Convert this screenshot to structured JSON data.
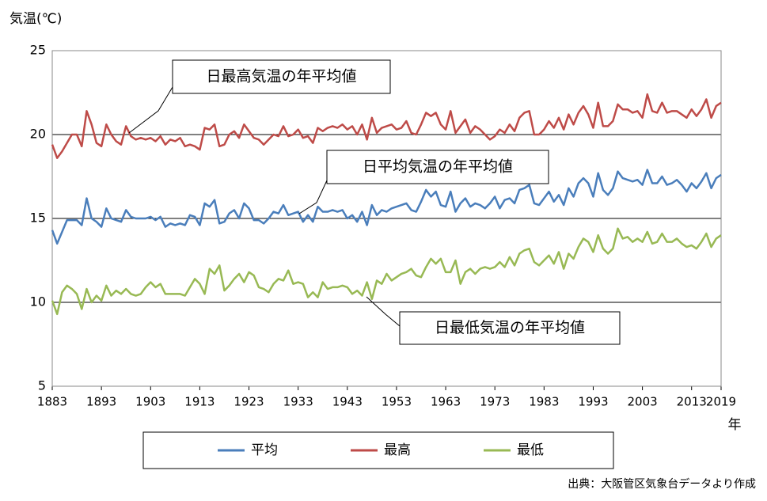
{
  "chart_data": {
    "type": "line",
    "y_label": "気温(℃)",
    "x_label": "年",
    "source": "出典：大阪管区気象台データより作成",
    "annotations": [
      "日最高気温の年平均値",
      "日平均気温の年平均値",
      "日最低気温の年平均値"
    ],
    "x": [
      1883,
      1884,
      1885,
      1886,
      1887,
      1888,
      1889,
      1890,
      1891,
      1892,
      1893,
      1894,
      1895,
      1896,
      1897,
      1898,
      1899,
      1900,
      1901,
      1902,
      1903,
      1904,
      1905,
      1906,
      1907,
      1908,
      1909,
      1910,
      1911,
      1912,
      1913,
      1914,
      1915,
      1916,
      1917,
      1918,
      1919,
      1920,
      1921,
      1922,
      1923,
      1924,
      1925,
      1926,
      1927,
      1928,
      1929,
      1930,
      1931,
      1932,
      1933,
      1934,
      1935,
      1936,
      1937,
      1938,
      1939,
      1940,
      1941,
      1942,
      1943,
      1944,
      1945,
      1946,
      1947,
      1948,
      1949,
      1950,
      1951,
      1952,
      1953,
      1954,
      1955,
      1956,
      1957,
      1958,
      1959,
      1960,
      1961,
      1962,
      1963,
      1964,
      1965,
      1966,
      1967,
      1968,
      1969,
      1970,
      1971,
      1972,
      1973,
      1974,
      1975,
      1976,
      1977,
      1978,
      1979,
      1980,
      1981,
      1982,
      1983,
      1984,
      1985,
      1986,
      1987,
      1988,
      1989,
      1990,
      1991,
      1992,
      1993,
      1994,
      1995,
      1996,
      1997,
      1998,
      1999,
      2000,
      2001,
      2002,
      2003,
      2004,
      2005,
      2006,
      2007,
      2008,
      2009,
      2010,
      2011,
      2012,
      2013,
      2014,
      2015,
      2016,
      2017,
      2018,
      2019
    ],
    "series": [
      {
        "name": "平均",
        "color": "#4a7ebb",
        "values": [
          14.3,
          13.5,
          14.2,
          14.9,
          14.9,
          14.9,
          14.6,
          16.2,
          15.0,
          14.8,
          14.5,
          15.6,
          15.0,
          14.9,
          14.8,
          15.5,
          15.1,
          15.0,
          15.0,
          15.0,
          15.1,
          14.9,
          15.1,
          14.5,
          14.7,
          14.6,
          14.7,
          14.6,
          15.2,
          15.1,
          14.6,
          15.9,
          15.7,
          16.1,
          14.7,
          14.8,
          15.3,
          15.5,
          15.0,
          15.9,
          15.6,
          14.9,
          14.9,
          14.7,
          15.0,
          15.4,
          15.3,
          15.8,
          15.2,
          15.3,
          15.4,
          14.8,
          15.2,
          14.8,
          15.7,
          15.4,
          15.4,
          15.5,
          15.4,
          15.5,
          15.0,
          15.2,
          14.8,
          15.4,
          14.6,
          15.8,
          15.2,
          15.5,
          15.4,
          15.6,
          15.7,
          15.8,
          15.9,
          15.5,
          15.4,
          16.0,
          16.7,
          16.3,
          16.6,
          15.8,
          15.7,
          16.6,
          15.4,
          15.9,
          16.2,
          15.7,
          15.9,
          15.8,
          15.6,
          15.9,
          16.3,
          15.6,
          16.1,
          16.2,
          15.9,
          16.7,
          16.8,
          17.0,
          15.9,
          15.8,
          16.2,
          16.6,
          16.0,
          16.4,
          15.8,
          16.8,
          16.3,
          17.1,
          17.4,
          17.1,
          16.3,
          17.7,
          16.7,
          16.4,
          16.8,
          17.8,
          17.4,
          17.3,
          17.2,
          17.3,
          17.0,
          17.9,
          17.1,
          17.1,
          17.5,
          17.0,
          17.1,
          17.3,
          17.0,
          16.6,
          17.1,
          16.8,
          17.2,
          17.7,
          16.8,
          17.4,
          17.6
        ]
      },
      {
        "name": "最高",
        "color": "#be4b48",
        "values": [
          19.4,
          18.6,
          19.0,
          19.5,
          20.0,
          20.0,
          19.3,
          21.4,
          20.6,
          19.5,
          19.3,
          20.6,
          20.0,
          19.6,
          19.4,
          20.5,
          19.9,
          19.7,
          19.8,
          19.7,
          19.8,
          19.6,
          19.9,
          19.4,
          19.7,
          19.6,
          19.8,
          19.3,
          19.4,
          19.3,
          19.1,
          20.4,
          20.3,
          20.6,
          19.3,
          19.4,
          20.0,
          20.2,
          19.8,
          20.6,
          20.2,
          19.8,
          19.7,
          19.4,
          19.7,
          20.0,
          19.9,
          20.5,
          19.9,
          20.0,
          20.3,
          19.8,
          19.9,
          19.5,
          20.4,
          20.2,
          20.4,
          20.5,
          20.4,
          20.6,
          20.3,
          20.5,
          20.0,
          20.6,
          19.7,
          21.0,
          20.1,
          20.4,
          20.5,
          20.6,
          20.3,
          20.4,
          20.8,
          20.1,
          20.0,
          20.6,
          21.3,
          21.1,
          21.3,
          20.6,
          20.3,
          21.4,
          20.1,
          20.5,
          20.9,
          20.1,
          20.5,
          20.3,
          20.0,
          19.7,
          19.9,
          20.3,
          20.1,
          20.6,
          20.2,
          21.0,
          21.3,
          21.4,
          20.0,
          20.0,
          20.3,
          20.8,
          20.4,
          21.0,
          20.3,
          21.2,
          20.6,
          21.3,
          21.7,
          21.2,
          20.4,
          21.9,
          20.5,
          20.5,
          20.8,
          21.8,
          21.5,
          21.5,
          21.3,
          21.4,
          21.0,
          22.4,
          21.4,
          21.3,
          21.9,
          21.3,
          21.4,
          21.4,
          21.2,
          21.0,
          21.5,
          21.1,
          21.5,
          22.1,
          21.0,
          21.7,
          21.9
        ]
      },
      {
        "name": "最低",
        "color": "#98b954",
        "values": [
          10.1,
          9.3,
          10.6,
          11.0,
          10.8,
          10.5,
          9.6,
          10.8,
          10.0,
          10.4,
          10.1,
          11.0,
          10.4,
          10.7,
          10.5,
          10.8,
          10.5,
          10.4,
          10.5,
          10.9,
          11.2,
          10.9,
          11.1,
          10.5,
          10.5,
          10.5,
          10.5,
          10.4,
          10.9,
          11.4,
          11.1,
          10.5,
          12.0,
          11.7,
          12.2,
          10.7,
          11.0,
          11.4,
          11.7,
          11.2,
          11.8,
          11.6,
          10.9,
          10.8,
          10.6,
          11.1,
          11.4,
          11.3,
          11.9,
          11.1,
          11.2,
          11.1,
          10.3,
          10.6,
          10.3,
          11.2,
          10.8,
          10.9,
          10.9,
          11.0,
          10.9,
          10.5,
          10.7,
          10.4,
          11.2,
          10.2,
          11.3,
          11.1,
          11.7,
          11.3,
          11.5,
          11.7,
          11.8,
          12.0,
          11.6,
          11.5,
          12.1,
          12.6,
          12.3,
          12.6,
          11.8,
          11.8,
          12.5,
          11.1,
          11.8,
          12.0,
          11.7,
          12.0,
          12.1,
          12.0,
          12.1,
          12.4,
          12.1,
          12.7,
          12.2,
          12.9,
          13.1,
          13.2,
          12.4,
          12.2,
          12.5,
          12.8,
          12.3,
          13.0,
          12.0,
          12.9,
          12.6,
          13.3,
          13.8,
          13.6,
          13.0,
          14.0,
          13.2,
          12.9,
          13.2,
          14.4,
          13.8,
          13.9,
          13.6,
          13.8,
          13.6,
          14.2,
          13.5,
          13.6,
          14.1,
          13.6,
          13.6,
          13.8,
          13.5,
          13.3,
          13.4,
          13.2,
          13.6,
          14.1,
          13.3,
          13.8,
          14.0
        ]
      }
    ],
    "xlim": [
      1883,
      2019
    ],
    "xticks": [
      1883,
      1893,
      1903,
      1913,
      1923,
      1933,
      1943,
      1953,
      1963,
      1973,
      1983,
      1993,
      2003,
      2013,
      2019
    ],
    "ylim": [
      5,
      25
    ],
    "yticks": [
      5,
      10,
      15,
      20,
      25
    ],
    "grid": true,
    "legend": "bottom"
  }
}
